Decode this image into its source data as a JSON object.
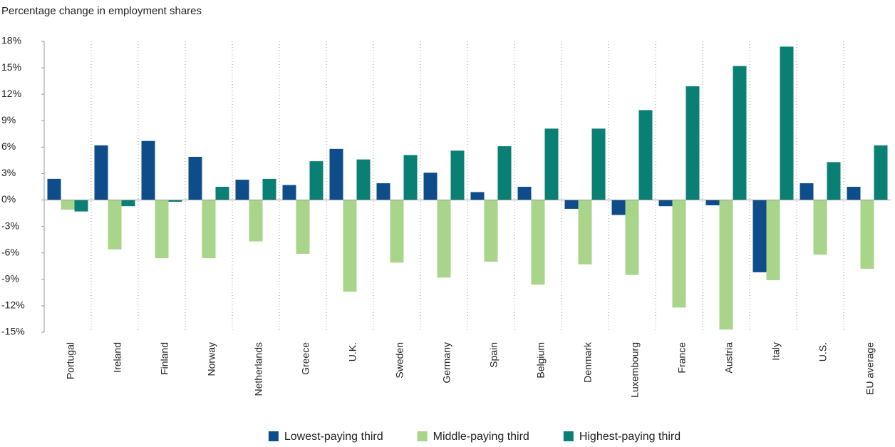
{
  "chart_data": {
    "type": "bar",
    "title": "Percentage change in employment shares",
    "categories": [
      "Portugal",
      "Ireland",
      "Finland",
      "Norway",
      "Netherlands",
      "Greece",
      "U.K.",
      "Sweden",
      "Germany",
      "Spain",
      "Belgium",
      "Denmark",
      "Luxembourg",
      "France",
      "Austria",
      "Italy",
      "U.S.",
      "EU average"
    ],
    "series": [
      {
        "name": "Lowest-paying third",
        "color": "#0e4d8a",
        "values": [
          2.4,
          6.2,
          6.7,
          4.9,
          2.3,
          1.7,
          5.8,
          1.9,
          3.1,
          0.9,
          1.5,
          -1.0,
          -1.7,
          -0.7,
          -0.6,
          -8.2,
          1.9,
          1.5
        ]
      },
      {
        "name": "Middle-paying third",
        "color": "#a8d58a",
        "values": [
          -1.1,
          -5.6,
          -6.6,
          -6.6,
          -4.7,
          -6.1,
          -10.4,
          -7.1,
          -8.8,
          -7.0,
          -9.6,
          -7.3,
          -8.5,
          -12.2,
          -14.7,
          -9.1,
          -6.2,
          -7.8
        ]
      },
      {
        "name": "Highest-paying third",
        "color": "#0a7f73",
        "values": [
          -1.3,
          -0.7,
          -0.2,
          1.5,
          2.4,
          4.4,
          4.6,
          5.1,
          5.6,
          6.1,
          8.1,
          8.1,
          10.2,
          12.9,
          15.2,
          17.4,
          4.3,
          6.2
        ]
      }
    ],
    "ylim": [
      -15,
      18
    ],
    "yticks": [
      {
        "value": -15,
        "label": "-15%"
      },
      {
        "value": -12,
        "label": "-12%"
      },
      {
        "value": -9,
        "label": "-9%"
      },
      {
        "value": -6,
        "label": "-6%"
      },
      {
        "value": -3,
        "label": "-3%"
      },
      {
        "value": 0,
        "label": "0%"
      },
      {
        "value": 3,
        "label": "3%"
      },
      {
        "value": 6,
        "label": "6%"
      },
      {
        "value": 9,
        "label": "9%"
      },
      {
        "value": 12,
        "label": "12%"
      },
      {
        "value": 15,
        "label": "15%"
      },
      {
        "value": 18,
        "label": "18%"
      }
    ],
    "legend": "bottom"
  }
}
